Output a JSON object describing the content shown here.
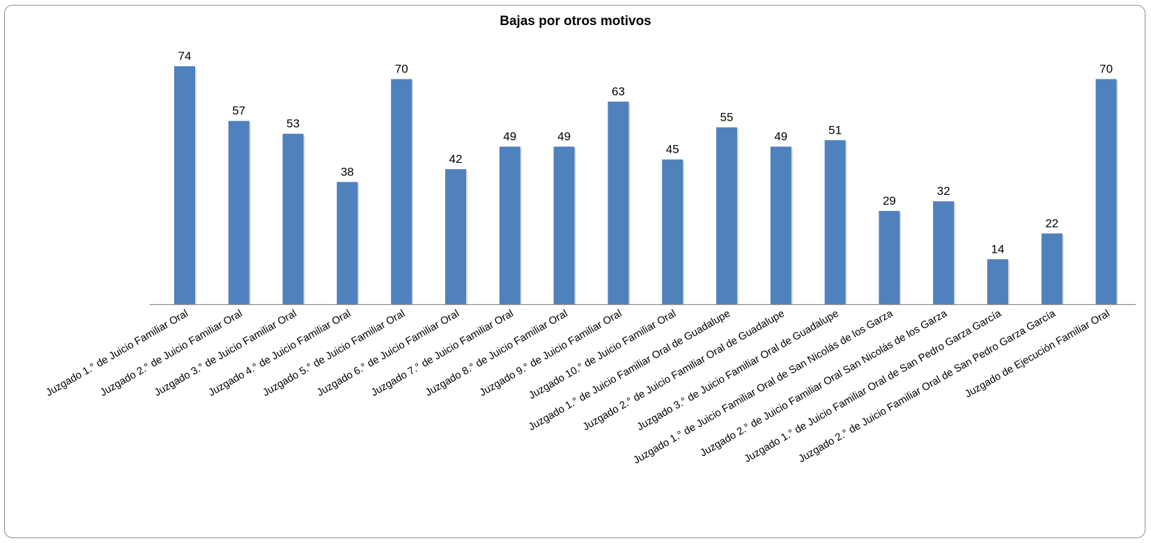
{
  "chart_data": {
    "type": "bar",
    "title": "Bajas por otros motivos",
    "xlabel": "",
    "ylabel": "",
    "ylim": [
      0,
      80
    ],
    "grid": false,
    "legend": "none",
    "bar_color": "#4f81bd",
    "categories": [
      "Juzgado 1.° de Juicio Familiar Oral",
      "Juzgado 2.° de Juicio Familiar Oral",
      "Juzgado 3.° de Juicio Familiar Oral",
      "Juzgado 4.° de Juicio Familiar Oral",
      "Juzgado 5.° de Juicio Familiar Oral",
      "Juzgado 6.° de Juicio Familiar Oral",
      "Juzgado 7.° de Juicio Familiar Oral",
      "Juzgado 8.° de Juicio Familiar Oral",
      "Juzgado 9.° de Juicio Familiar Oral",
      "Juzgado 10.° de Juicio Familiar Oral",
      "Juzgado 1.° de Juicio Familiar Oral de Guadalupe",
      "Juzgado 2.° de Juicio Familiar Oral de Guadalupe",
      "Juzgado 3.° de Juicio Familiar Oral de Guadalupe",
      "Juzgado 1.° de Juicio Familiar Oral de San Nicolás de los Garza",
      "Juzgado 2.° de Juicio Familiar Oral San Nicolás de los Garza",
      "Juzgado 1.° de Juicio Familiar Oral de San Pedro Garza García",
      "Juzgado 2.° de Juicio Familiar Oral de San Pedro Garza García",
      "Juzgado de Ejecución Familiar Oral"
    ],
    "values": [
      74,
      57,
      53,
      38,
      70,
      42,
      49,
      49,
      63,
      45,
      55,
      49,
      51,
      29,
      32,
      14,
      22,
      70
    ]
  }
}
